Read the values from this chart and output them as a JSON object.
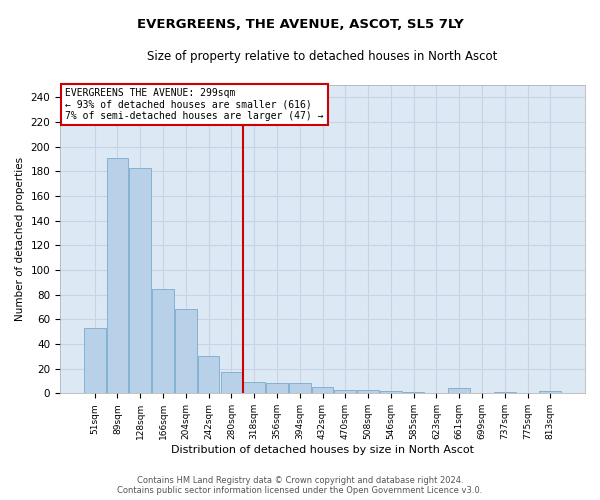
{
  "title": "EVERGREENS, THE AVENUE, ASCOT, SL5 7LY",
  "subtitle": "Size of property relative to detached houses in North Ascot",
  "xlabel": "Distribution of detached houses by size in North Ascot",
  "ylabel": "Number of detached properties",
  "footer_line1": "Contains HM Land Registry data © Crown copyright and database right 2024.",
  "footer_line2": "Contains public sector information licensed under the Open Government Licence v3.0.",
  "categories": [
    "51sqm",
    "89sqm",
    "128sqm",
    "166sqm",
    "204sqm",
    "242sqm",
    "280sqm",
    "318sqm",
    "356sqm",
    "394sqm",
    "432sqm",
    "470sqm",
    "508sqm",
    "546sqm",
    "585sqm",
    "623sqm",
    "661sqm",
    "699sqm",
    "737sqm",
    "775sqm",
    "813sqm"
  ],
  "values": [
    53,
    191,
    183,
    85,
    68,
    30,
    17,
    9,
    8,
    8,
    5,
    3,
    3,
    2,
    1,
    0,
    4,
    0,
    1,
    0,
    2
  ],
  "bar_color": "#b8d0e8",
  "bar_edge_color": "#7aaace",
  "grid_color": "#c8d4e4",
  "plot_bg_color": "#dce8f4",
  "fig_bg_color": "#ffffff",
  "property_line_x": 6.5,
  "vline_color": "#cc0000",
  "annotation_text_line1": "EVERGREENS THE AVENUE: 299sqm",
  "annotation_text_line2": "← 93% of detached houses are smaller (616)",
  "annotation_text_line3": "7% of semi-detached houses are larger (47) →",
  "annotation_box_color": "#cc0000",
  "ylim": [
    0,
    250
  ],
  "yticks": [
    0,
    20,
    40,
    60,
    80,
    100,
    120,
    140,
    160,
    180,
    200,
    220,
    240
  ]
}
